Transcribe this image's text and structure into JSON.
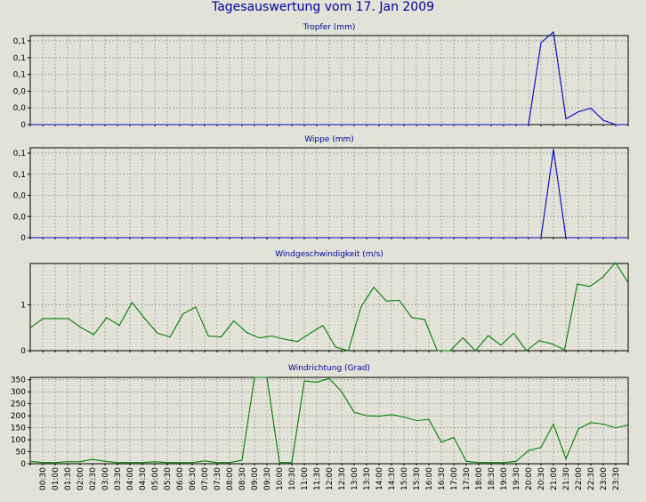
{
  "title": "Tagesauswertung vom 17. Jan 2009",
  "colors": {
    "background": "#e2e2d8",
    "grid": "#9a9a9a",
    "title": "#0000a0"
  },
  "chart_data": [
    {
      "type": "line",
      "title": "Tropfer (mm)",
      "color": "#0000cc",
      "ytick_labels": [
        "0,1",
        "0,1",
        "0,1",
        "0,0",
        "0,0",
        "0"
      ],
      "ylim": [
        0,
        0.125
      ],
      "values": [
        0,
        0,
        0,
        0,
        0,
        0,
        0,
        0,
        0,
        0,
        0,
        0,
        0,
        0,
        0,
        0,
        0,
        0,
        0,
        0,
        0,
        0,
        0,
        0,
        0,
        0,
        0,
        0,
        0,
        0,
        0,
        0,
        0,
        0,
        0,
        0,
        0,
        0,
        0,
        0,
        0.0,
        0.115,
        0.13,
        0.008,
        0.018,
        0.023,
        0.006,
        0,
        0
      ]
    },
    {
      "type": "line",
      "title": "Wippe (mm)",
      "color": "#0000cc",
      "ytick_labels": [
        "0,1",
        "0,1",
        "0,0",
        "0,0",
        "0"
      ],
      "ylim": [
        0,
        0.1
      ],
      "values": [
        0,
        0,
        0,
        0,
        0,
        0,
        0,
        0,
        0,
        0,
        0,
        0,
        0,
        0,
        0,
        0,
        0,
        0,
        0,
        0,
        0,
        0,
        0,
        0,
        0,
        0,
        0,
        0,
        0,
        0,
        0,
        0,
        0,
        0,
        0,
        0,
        0,
        0,
        0,
        0,
        0,
        0,
        0.098,
        0,
        0,
        0,
        0,
        0,
        0
      ]
    },
    {
      "type": "line",
      "title": "Windgeschwindigkeit (m/s)",
      "color": "#008000",
      "ytick_labels": [
        "1",
        "0"
      ],
      "yticks": [
        1,
        0
      ],
      "ylim": [
        0,
        1.9
      ],
      "values": [
        0.5,
        0.7,
        0.7,
        0.7,
        0.5,
        0.35,
        0.72,
        0.55,
        1.05,
        0.7,
        0.38,
        0.3,
        0.8,
        0.95,
        0.32,
        0.3,
        0.65,
        0.4,
        0.28,
        0.32,
        0.25,
        0.2,
        0.38,
        0.55,
        0.08,
        0,
        0.95,
        1.38,
        1.08,
        1.1,
        0.72,
        0.68,
        0,
        0,
        0.28,
        0,
        0.33,
        0.12,
        0.38,
        0,
        0.22,
        0.15,
        0.02,
        1.45,
        1.4,
        1.6,
        1.92,
        1.48
      ]
    },
    {
      "type": "line",
      "title": "Windrichtung (Grad)",
      "color": "#008000",
      "ytick_labels": [
        "350",
        "300",
        "250",
        "200",
        "150",
        "100",
        "50",
        "0"
      ],
      "yticks": [
        350,
        300,
        250,
        200,
        150,
        100,
        50,
        0
      ],
      "ylim": [
        0,
        360
      ],
      "values": [
        10,
        5,
        5,
        8,
        8,
        18,
        10,
        5,
        5,
        5,
        8,
        5,
        5,
        5,
        12,
        5,
        5,
        15,
        360,
        360,
        5,
        5,
        345,
        340,
        355,
        300,
        215,
        200,
        198,
        205,
        195,
        180,
        185,
        90,
        110,
        10,
        5,
        5,
        5,
        10,
        55,
        68,
        165,
        20,
        145,
        172,
        165,
        150,
        162
      ]
    }
  ],
  "xtick_labels": [
    "00:30",
    "01:00",
    "01:30",
    "02:00",
    "02:30",
    "03:00",
    "03:30",
    "04:00",
    "04:30",
    "05:00",
    "05:30",
    "06:00",
    "06:30",
    "07:00",
    "07:30",
    "08:00",
    "08:30",
    "09:00",
    "09:30",
    "10:00",
    "10:30",
    "11:00",
    "11:30",
    "12:00",
    "12:30",
    "13:00",
    "13:30",
    "14:00",
    "14:30",
    "15:00",
    "15:30",
    "16:00",
    "16:30",
    "17:00",
    "17:30",
    "18:00",
    "18:30",
    "19:00",
    "19:30",
    "20:00",
    "20:30",
    "21:00",
    "21:30",
    "22:00",
    "22:30",
    "23:00",
    "23:30"
  ]
}
